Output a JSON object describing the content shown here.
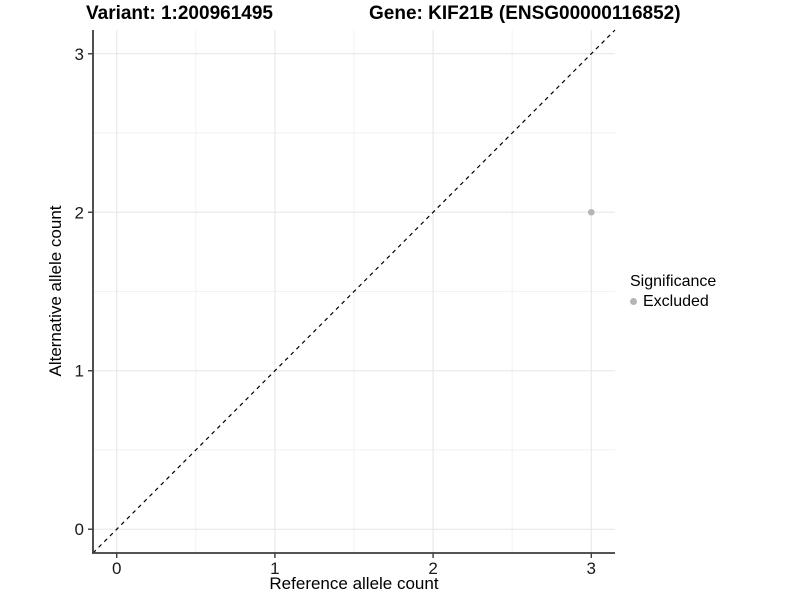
{
  "chart_data": {
    "type": "scatter",
    "title_left": "Variant: 1:200961495",
    "title_right": "Gene: KIF21B (ENSG00000116852)",
    "xlabel": "Reference allele count",
    "ylabel": "Alternative allele count",
    "xlim": [
      -0.15,
      3.15
    ],
    "ylim": [
      -0.15,
      3.15
    ],
    "xticks": [
      0,
      1,
      2,
      3
    ],
    "yticks": [
      0,
      1,
      2,
      3
    ],
    "minor_gridlines": [
      0.5,
      1.5,
      2.5
    ],
    "grid": true,
    "reference_line": {
      "type": "identity y=x",
      "style": "dashed",
      "color": "#000000"
    },
    "series": [
      {
        "name": "Excluded",
        "color": "#b5b5b5",
        "marker": "circle",
        "points": [
          {
            "x": 3,
            "y": 2
          }
        ]
      }
    ],
    "legend": {
      "title": "Significance",
      "position": "right-middle",
      "entries": [
        {
          "label": "Excluded",
          "color": "#b5b5b5"
        }
      ]
    }
  },
  "colors": {
    "background": "#ffffff",
    "axis_line": "#3c3c3c",
    "tick_mark": "#3c3c3c",
    "tick_text": "#1a1a1a",
    "grid_major": "#e5e5e5",
    "grid_minor": "#f2f2f2",
    "identity_line": "#000000",
    "point": "#b5b5b5"
  }
}
